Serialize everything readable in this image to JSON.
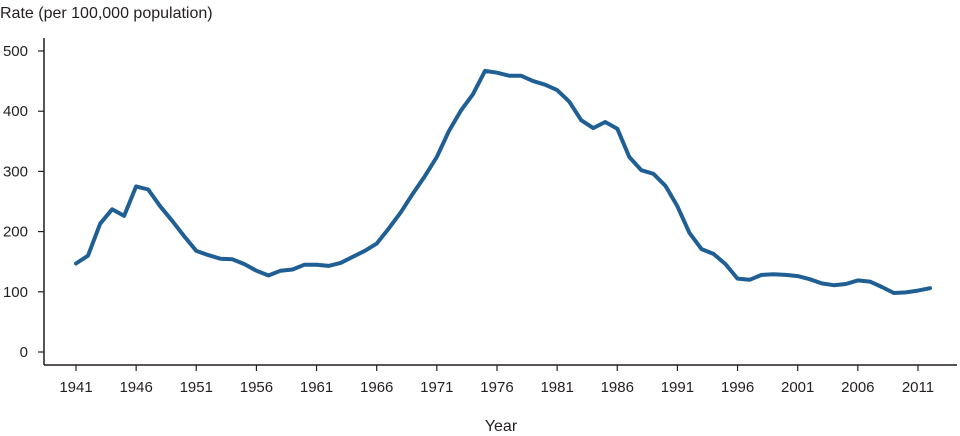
{
  "chart_data": {
    "type": "line",
    "title": "",
    "ylabel": "Rate (per 100,000 population)",
    "xlabel": "Year",
    "ylim": [
      0,
      500
    ],
    "xlim": [
      1941,
      2012
    ],
    "y_ticks": [
      0,
      100,
      200,
      300,
      400,
      500
    ],
    "x_ticks": [
      1941,
      1946,
      1951,
      1956,
      1961,
      1966,
      1971,
      1976,
      1981,
      1986,
      1991,
      1996,
      2001,
      2006,
      2011
    ],
    "grid": false,
    "line_color": "#1f5f94",
    "series": [
      {
        "x": [
          1941,
          1942,
          1943,
          1944,
          1945,
          1946,
          1947,
          1948,
          1949,
          1950,
          1951,
          1952,
          1953,
          1954,
          1955,
          1956,
          1957,
          1958,
          1959,
          1960,
          1961,
          1962,
          1963,
          1964,
          1965,
          1966,
          1967,
          1968,
          1969,
          1970,
          1971,
          1972,
          1973,
          1974,
          1975,
          1976,
          1977,
          1978,
          1979,
          1980,
          1981,
          1982,
          1983,
          1984,
          1985,
          1986,
          1987,
          1988,
          1989,
          1990,
          1991,
          1992,
          1993,
          1994,
          1995,
          1996,
          1997,
          1998,
          1999,
          2000,
          2001,
          2002,
          2003,
          2004,
          2005,
          2006,
          2007,
          2008,
          2009,
          2010,
          2011,
          2012
        ],
        "y": [
          147,
          160,
          213,
          237,
          226,
          275,
          270,
          242,
          218,
          192,
          168,
          161,
          155,
          154,
          146,
          135,
          127,
          135,
          137,
          145,
          145,
          143,
          148,
          158,
          168,
          180,
          205,
          232,
          263,
          292,
          324,
          367,
          401,
          428,
          467,
          464,
          459,
          459,
          450,
          444,
          435,
          416,
          385,
          372,
          382,
          371,
          324,
          302,
          296,
          276,
          242,
          198,
          171,
          163,
          146,
          122,
          120,
          128,
          129,
          128,
          126,
          121,
          114,
          111,
          113,
          119,
          117,
          108,
          98,
          99,
          102,
          106
        ]
      }
    ]
  }
}
